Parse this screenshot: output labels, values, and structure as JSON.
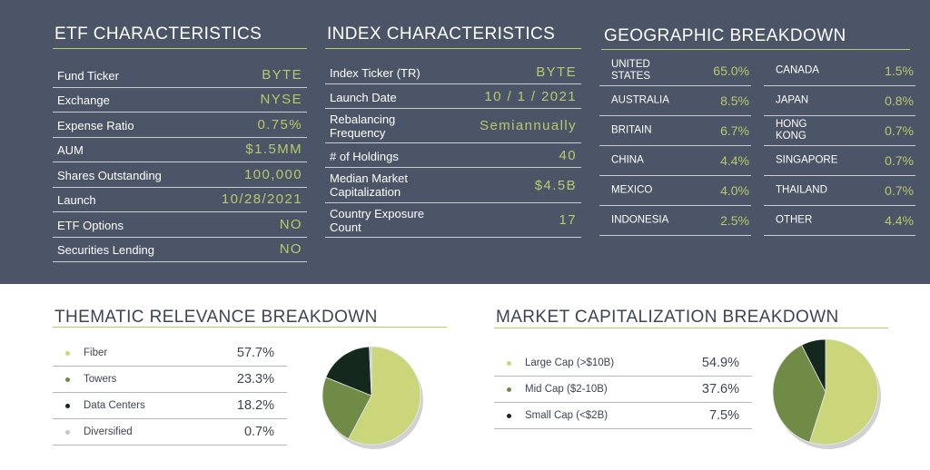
{
  "etf": {
    "title": "ETF CHARACTERISTICS",
    "rows": [
      {
        "label": "Fund Ticker",
        "value": "BYTE"
      },
      {
        "label": "Exchange",
        "value": "NYSE"
      },
      {
        "label": "Expense Ratio",
        "value": "0.75%"
      },
      {
        "label": "AUM",
        "value": "$1.5MM"
      },
      {
        "label": "Shares Outstanding",
        "value": "100,000"
      },
      {
        "label": "Launch",
        "value": "10/28/2021"
      },
      {
        "label": "ETF Options",
        "value": "NO"
      },
      {
        "label": "Securities Lending",
        "value": "NO"
      }
    ]
  },
  "index": {
    "title": "INDEX CHARACTERISTICS",
    "rows": [
      {
        "label": "Index Ticker  (TR)",
        "value": "BYTE"
      },
      {
        "label": "Launch Date",
        "value": "10 / 1 / 2021"
      },
      {
        "label": "Rebalancing\nFrequency",
        "value": "Semiannually"
      },
      {
        "label": "# of Holdings",
        "value": "40"
      },
      {
        "label": "Median Market\nCapitalization",
        "value": "$4.5B"
      },
      {
        "label": "Country Exposure\nCount",
        "value": "17"
      }
    ]
  },
  "geo": {
    "title": "GEOGRAPHIC BREAKDOWN",
    "left": [
      {
        "label": "UNITED\nSTATES",
        "value": "65.0%"
      },
      {
        "label": "AUSTRALIA",
        "value": "8.5%"
      },
      {
        "label": "BRITAIN",
        "value": "6.7%"
      },
      {
        "label": "CHINA",
        "value": "4.4%"
      },
      {
        "label": "MEXICO",
        "value": "4.0%"
      },
      {
        "label": "INDONESIA",
        "value": "2.5%"
      }
    ],
    "right": [
      {
        "label": "CANADA",
        "value": "1.5%"
      },
      {
        "label": "JAPAN",
        "value": "0.8%"
      },
      {
        "label": "HONG\nKONG",
        "value": "0.7%"
      },
      {
        "label": "SINGAPORE",
        "value": "0.7%"
      },
      {
        "label": "THAILAND",
        "value": "0.7%"
      },
      {
        "label": "OTHER",
        "value": "4.4%"
      }
    ]
  },
  "thematic": {
    "title": "THEMATIC RELEVANCE BREAKDOWN",
    "items": [
      {
        "label": "Fiber",
        "value": "57.7%",
        "color": "#cbd67b"
      },
      {
        "label": "Towers",
        "value": "23.3%",
        "color": "#6f8b45"
      },
      {
        "label": "Data Centers",
        "value": "18.2%",
        "color": "#15281e"
      },
      {
        "label": "Diversified",
        "value": "0.7%",
        "color": "#c4c7cc"
      }
    ]
  },
  "marketcap": {
    "title": "MARKET CAPITALIZATION BREAKDOWN",
    "items": [
      {
        "label": "Large Cap (>$10B)",
        "value": "54.9%",
        "color": "#cbd67b"
      },
      {
        "label": "Mid Cap ($2-10B)",
        "value": "37.6%",
        "color": "#6f8b45"
      },
      {
        "label": "Small Cap (<$2B)",
        "value": "7.5%",
        "color": "#15281e"
      }
    ]
  },
  "chart_data": [
    {
      "type": "pie",
      "categories": [
        "Fiber",
        "Towers",
        "Data Centers",
        "Diversified"
      ],
      "values": [
        57.7,
        23.3,
        18.2,
        0.7
      ],
      "colors": [
        "#cbd67b",
        "#6f8b45",
        "#15281e",
        "#c4c7cc"
      ],
      "title": ""
    },
    {
      "type": "pie",
      "categories": [
        "Large Cap (>$10B)",
        "Mid Cap ($2-10B)",
        "Small Cap (<$2B)"
      ],
      "values": [
        54.9,
        37.6,
        7.5
      ],
      "colors": [
        "#cbd67b",
        "#6f8b45",
        "#15281e"
      ],
      "title": ""
    }
  ]
}
